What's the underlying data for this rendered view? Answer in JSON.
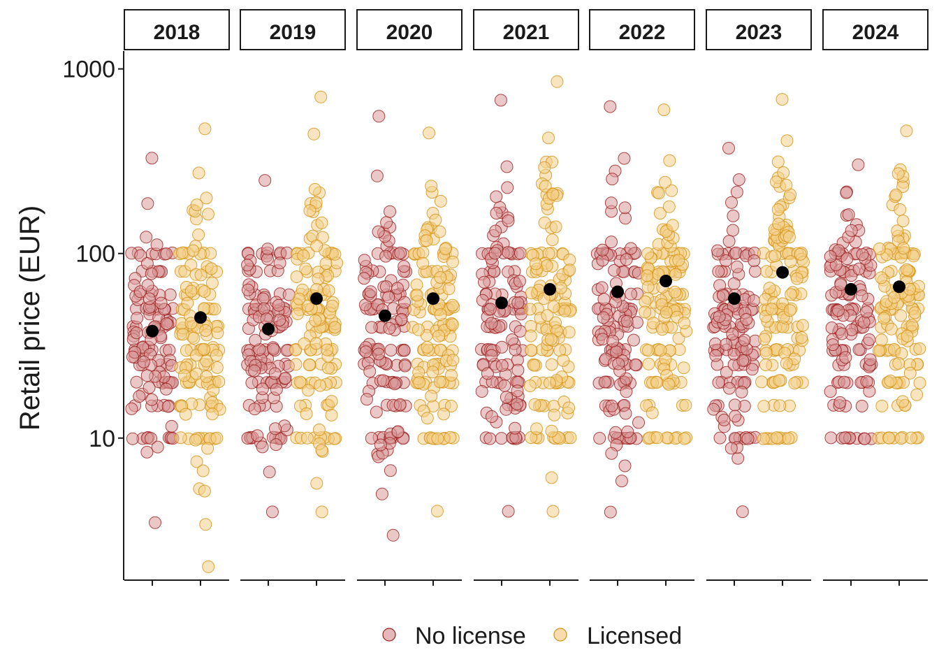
{
  "chart_data": {
    "type": "scatter",
    "ylabel": "Retail price (EUR)",
    "xlabel": "",
    "y_scale": "log10",
    "ylim": [
      1.7,
      1250
    ],
    "y_ticks": [
      10,
      100,
      1000
    ],
    "y_tick_labels": [
      "10",
      "100",
      "1000"
    ],
    "facets": [
      "2018",
      "2019",
      "2020",
      "2021",
      "2022",
      "2023",
      "2024"
    ],
    "groups": [
      "No license",
      "Licensed"
    ],
    "legend_position": "bottom",
    "series": [
      {
        "name": "No license",
        "color": "#9b1c1c",
        "fill": "#d99a9a",
        "mean_by_year": [
          38,
          39,
          46,
          54,
          62,
          57,
          64
        ],
        "max_by_year": [
          330,
          250,
          550,
          680,
          630,
          370,
          300
        ],
        "min_by_year": [
          3.5,
          4,
          3,
          4,
          4,
          4,
          10
        ]
      },
      {
        "name": "Licensed",
        "color": "#d4900e",
        "fill": "#f3cf8a",
        "mean_by_year": [
          45,
          57,
          57,
          64,
          71,
          79,
          66
        ],
        "max_by_year": [
          470,
          710,
          450,
          860,
          600,
          690,
          460
        ],
        "min_by_year": [
          2,
          4,
          4,
          4,
          10,
          10,
          10
        ]
      }
    ]
  },
  "legend": {
    "no_license_label": "No license",
    "licensed_label": "Licensed"
  },
  "colors": {
    "no_license_stroke": "#9b1c1c",
    "no_license_fill": "#d99a9a",
    "licensed_stroke": "#d4900e",
    "licensed_fill": "#f3cf8a",
    "mean_dot": "#000000"
  }
}
